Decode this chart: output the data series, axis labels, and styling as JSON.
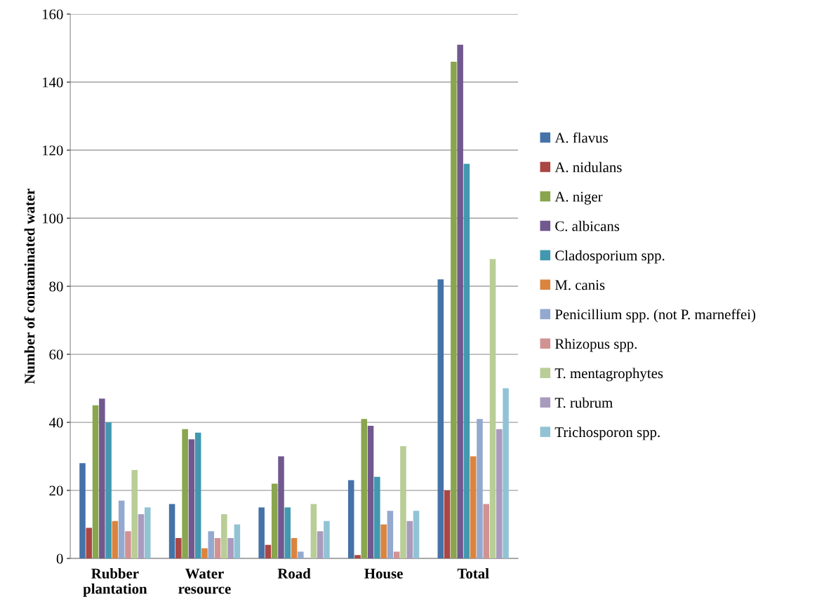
{
  "chart_data": {
    "type": "bar",
    "ylabel": "Number of contaminated water",
    "categories": [
      "Rubber\nplantation",
      "Water\nresource",
      "Road",
      "House",
      "Total"
    ],
    "series": [
      {
        "name": "A. flavus",
        "color": "#4572a7",
        "values": [
          28,
          16,
          15,
          23,
          82
        ]
      },
      {
        "name": "A. nidulans",
        "color": "#aa4643",
        "values": [
          9,
          6,
          4,
          1,
          20
        ]
      },
      {
        "name": "A. niger",
        "color": "#89a54e",
        "values": [
          45,
          38,
          22,
          41,
          146
        ]
      },
      {
        "name": "C. albicans",
        "color": "#71588f",
        "values": [
          47,
          35,
          30,
          39,
          151
        ]
      },
      {
        "name": "Cladosporium spp.",
        "color": "#4198af",
        "values": [
          40,
          37,
          15,
          24,
          116
        ]
      },
      {
        "name": "M. canis",
        "color": "#db843d",
        "values": [
          11,
          3,
          6,
          10,
          30
        ]
      },
      {
        "name": "Penicillium spp. (not P. marneffei)",
        "color": "#93a9cf",
        "values": [
          17,
          8,
          2,
          14,
          41
        ]
      },
      {
        "name": "Rhizopus spp.",
        "color": "#d19392",
        "values": [
          8,
          6,
          0,
          2,
          16
        ]
      },
      {
        "name": "T. mentagrophytes",
        "color": "#b9cd96",
        "values": [
          26,
          13,
          16,
          33,
          88
        ]
      },
      {
        "name": "T. rubrum",
        "color": "#a99bbd",
        "values": [
          13,
          6,
          8,
          11,
          38
        ]
      },
      {
        "name": "Trichosporon spp.",
        "color": "#91c3d5",
        "values": [
          15,
          10,
          11,
          14,
          50
        ]
      }
    ],
    "ylim": [
      0,
      160
    ],
    "yticks": [
      0,
      20,
      40,
      60,
      80,
      100,
      120,
      140,
      160
    ],
    "grid": "y",
    "legend": "right"
  }
}
